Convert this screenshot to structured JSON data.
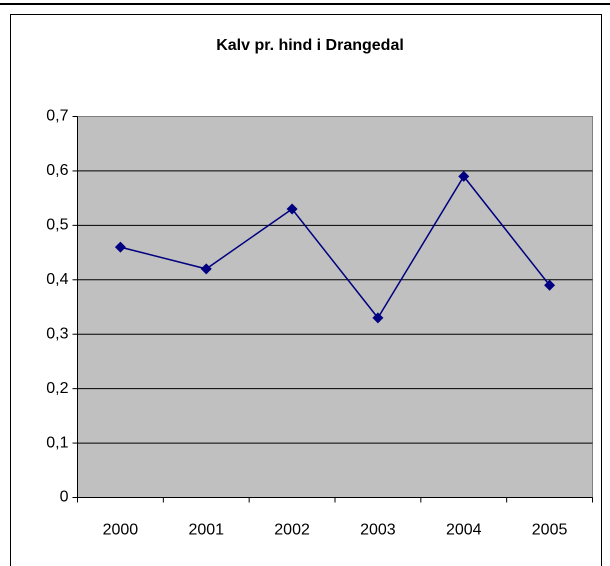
{
  "chart_data": {
    "type": "line",
    "title": "Kalv pr. hind i Drangedal",
    "categories": [
      "2000",
      "2001",
      "2002",
      "2003",
      "2004",
      "2005"
    ],
    "values": [
      0.46,
      0.42,
      0.53,
      0.33,
      0.59,
      0.39
    ],
    "color": "#000080",
    "ylim": [
      0,
      0.7
    ],
    "yticks": [
      0,
      {
        "value": 0.1,
        "label": "0,1"
      },
      {
        "value": 0.2,
        "label": "0,2"
      },
      {
        "value": 0.3,
        "label": "0,3"
      },
      {
        "value": 0.4,
        "label": "0,4"
      },
      {
        "value": 0.5,
        "label": "0,5"
      },
      {
        "value": 0.6,
        "label": "0,6"
      },
      {
        "value": 0.7,
        "label": "0,7"
      }
    ],
    "grid": true
  }
}
